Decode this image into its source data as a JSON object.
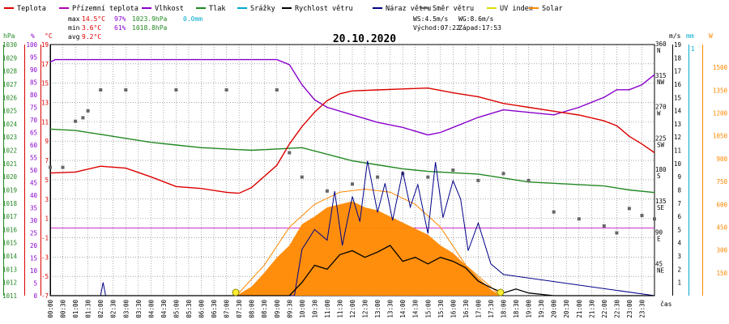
{
  "chart_data": {
    "type": "line",
    "title": "20.10.2020",
    "legend": [
      {
        "label": "Teplota",
        "color": "#dd0000"
      },
      {
        "label": "Přízemní teplota",
        "color": "#aa00aa"
      },
      {
        "label": "Vlhkost",
        "color": "#8800cc"
      },
      {
        "label": "Tlak",
        "color": "#228822"
      },
      {
        "label": "Srážky",
        "color": "#00aacc"
      },
      {
        "label": "Rychlost větru",
        "color": "#000000"
      },
      {
        "label": "Náraz větru",
        "color": "#000088"
      },
      {
        "label": "Směr větru",
        "color": "#666666"
      },
      {
        "label": "UV index",
        "color": "#dddd00"
      },
      {
        "label": "Solar",
        "color": "#ff8800"
      }
    ],
    "stats": {
      "max_label": "max",
      "max_temp": "14.5°C",
      "max_hum": "97%",
      "max_press": "1023.9hPa",
      "max_rain": "0.0mm",
      "min_label": "min",
      "min_temp": "3.6°C",
      "min_hum": "61%",
      "min_press": "1018.8hPa",
      "avg_label": "avg",
      "avg_temp": "9.2°C"
    },
    "wind_stats": {
      "ws": "WS:4.5m/s",
      "wg": "WG:8.6m/s",
      "sunrise": "Východ:07:22",
      "sunset": "Západ:17:53"
    },
    "axes": {
      "hpa": {
        "unit": "hPa",
        "ticks": [
          "1030",
          "1029",
          "1028",
          "1027",
          "1026",
          "1025",
          "1024",
          "1023",
          "1022",
          "1021",
          "1020",
          "1019",
          "1018",
          "1017",
          "1016",
          "1015",
          "1014",
          "1013",
          "1012",
          "1011"
        ],
        "range": [
          1011,
          1030
        ]
      },
      "pct": {
        "unit": "%",
        "ticks": [
          "100",
          "95",
          "90",
          "85",
          "80",
          "75",
          "70",
          "65",
          "60",
          "55",
          "50",
          "45",
          "40",
          "35",
          "30",
          "25",
          "20",
          "15",
          "10",
          "5",
          "0"
        ],
        "range": [
          0,
          100
        ]
      },
      "temp": {
        "unit": "°C",
        "ticks": [
          "19",
          "17",
          "15",
          "13",
          "11",
          "9",
          "7",
          "5",
          "3",
          "1",
          "-1",
          "-3",
          "-5",
          "-7"
        ],
        "range": [
          -7,
          19
        ]
      },
      "dir": {
        "unit": "°",
        "ticks": [
          {
            "v": "360",
            "d": "N"
          },
          {
            "v": "315",
            "d": "NW"
          },
          {
            "v": "270",
            "d": "W"
          },
          {
            "v": "225",
            "d": "SW"
          },
          {
            "v": "180",
            "d": "S"
          },
          {
            "v": "135",
            "d": "SE"
          },
          {
            "v": "90",
            "d": "E"
          },
          {
            "v": "45",
            "d": "NE"
          }
        ],
        "range": [
          0,
          360
        ]
      },
      "ms": {
        "unit": "m/s",
        "ticks": [
          "19",
          "18",
          "17",
          "16",
          "15",
          "14",
          "13",
          "12",
          "11",
          "10",
          "9",
          "8",
          "7",
          "6",
          "5",
          "4",
          "3",
          "2",
          "1"
        ],
        "range": [
          0,
          19
        ]
      },
      "mm": {
        "unit": "mm",
        "ticks": [
          "1"
        ],
        "range": [
          0,
          1
        ]
      },
      "solar": {
        "unit": "W",
        "ticks": [
          "1500",
          "1350",
          "1200",
          "1050",
          "900",
          "750",
          "600",
          "450",
          "300",
          "150"
        ],
        "range": [
          0,
          1650
        ]
      },
      "x": {
        "label": "čas",
        "ticks": [
          "00:00",
          "00:30",
          "01:00",
          "01:30",
          "02:00",
          "02:30",
          "03:00",
          "03:30",
          "04:00",
          "04:30",
          "05:00",
          "05:30",
          "06:00",
          "06:30",
          "07:00",
          "07:30",
          "08:00",
          "08:30",
          "09:00",
          "09:30",
          "10:00",
          "10:30",
          "11:00",
          "11:30",
          "12:00",
          "12:30",
          "13:00",
          "13:30",
          "14:00",
          "14:30",
          "15:00",
          "15:30",
          "16:00",
          "16:30",
          "17:00",
          "17:30",
          "18:00",
          "18:30",
          "19:00",
          "19:30",
          "20:00",
          "20:30",
          "21:00",
          "21:30",
          "22:00",
          "22:30",
          "23:00",
          "23:30"
        ],
        "range_hours": [
          0,
          24
        ]
      }
    },
    "series": [
      {
        "name": "Teplota",
        "unit": "°C",
        "x": [
          0,
          1,
          2,
          3,
          4,
          5,
          6,
          7,
          7.5,
          8,
          9,
          9.5,
          10,
          10.5,
          11,
          11.5,
          12,
          13,
          14,
          15,
          16,
          17,
          18,
          19,
          20,
          21,
          22,
          22.5,
          23,
          23.5,
          24
        ],
        "values": [
          5.7,
          5.8,
          6.4,
          6.2,
          5.3,
          4.3,
          4.1,
          3.7,
          3.6,
          4.2,
          6.5,
          8.7,
          10.5,
          12.0,
          13.2,
          13.9,
          14.2,
          14.3,
          14.4,
          14.5,
          14.0,
          13.6,
          12.9,
          12.5,
          12.1,
          11.7,
          11.1,
          10.6,
          9.5,
          8.7,
          7.8
        ]
      },
      {
        "name": "Vlhkost",
        "unit": "%",
        "x": [
          0,
          0.2,
          1,
          2,
          3,
          4,
          5,
          6,
          7,
          8,
          9,
          9.5,
          10,
          10.5,
          11,
          12,
          13,
          14,
          15,
          15.5,
          16,
          17,
          18,
          19,
          20,
          21,
          22,
          22.5,
          23,
          23.5,
          24
        ],
        "values": [
          93,
          94,
          94,
          94,
          94,
          94,
          94,
          94,
          94,
          94,
          94,
          92,
          84,
          78,
          75,
          72,
          69,
          67,
          64,
          65,
          67,
          71,
          74,
          73,
          72,
          75,
          79,
          82,
          82,
          84,
          88
        ]
      },
      {
        "name": "Tlak",
        "unit": "hPa",
        "x": [
          0,
          1,
          2,
          3,
          4,
          5,
          6,
          7,
          8,
          9,
          10,
          11,
          12,
          13,
          14,
          15,
          16,
          17,
          18,
          19,
          20,
          21,
          22,
          23,
          24
        ],
        "values": [
          1023.6,
          1023.5,
          1023.2,
          1022.9,
          1022.6,
          1022.4,
          1022.2,
          1022.1,
          1022.0,
          1022.1,
          1022.2,
          1021.7,
          1021.2,
          1020.9,
          1020.6,
          1020.4,
          1020.3,
          1020.2,
          1019.9,
          1019.6,
          1019.5,
          1019.4,
          1019.3,
          1019.0,
          1018.8
        ]
      },
      {
        "name": "Rychlost větru",
        "unit": "m/s",
        "x": [
          0,
          9.5,
          10,
          10.5,
          11,
          11.5,
          12,
          12.5,
          13,
          13.5,
          14,
          14.5,
          15,
          15.5,
          16,
          16.5,
          17,
          17.5,
          18,
          18.5,
          19,
          19.5,
          20,
          24
        ],
        "values": [
          0,
          0,
          1.0,
          2.3,
          2.0,
          3.1,
          3.4,
          2.9,
          3.3,
          3.8,
          2.6,
          2.9,
          2.4,
          2.9,
          2.6,
          2.1,
          1.1,
          0.6,
          0.2,
          0.5,
          0.2,
          0.1,
          0,
          0
        ]
      },
      {
        "name": "Náraz větru",
        "unit": "m/s",
        "x": [
          0,
          2,
          2.1,
          2.2,
          9.7,
          10,
          10.5,
          11,
          11.3,
          11.6,
          12,
          12.3,
          12.6,
          13,
          13.3,
          13.6,
          14,
          14.3,
          14.6,
          15,
          15.3,
          15.6,
          16,
          16.3,
          16.6,
          17,
          17.5,
          18,
          24
        ],
        "values": [
          0,
          0,
          1.0,
          0,
          0,
          3.5,
          5.0,
          4.2,
          7.9,
          3.8,
          7.5,
          5.6,
          10.2,
          6.3,
          8.5,
          5.7,
          9.4,
          6.7,
          8.4,
          4.7,
          10.1,
          5.9,
          8.7,
          7.3,
          3.4,
          5.5,
          2.4,
          1.6,
          0
        ]
      },
      {
        "name": "Směr větru",
        "unit": "°",
        "x": [
          0,
          0.5,
          1,
          1.3,
          1.5,
          2,
          3,
          5,
          7,
          9,
          9.5,
          10,
          11,
          12,
          13,
          14,
          15,
          16,
          17,
          18,
          19,
          20,
          21,
          22,
          22.5,
          23,
          23.5,
          24
        ],
        "values": [
          184,
          184,
          250,
          255,
          265,
          295,
          295,
          295,
          295,
          295,
          205,
          170,
          150,
          160,
          170,
          175,
          170,
          180,
          165,
          175,
          165,
          120,
          110,
          100,
          90,
          125,
          115,
          110
        ]
      },
      {
        "name": "Solar",
        "unit": "W/m2",
        "x": [
          7.4,
          8,
          8.5,
          9,
          9.5,
          10,
          10.5,
          11,
          11.5,
          12,
          12.5,
          13,
          13.5,
          14,
          14.5,
          15,
          15.5,
          16,
          16.5,
          17,
          17.5,
          17.9
        ],
        "values": [
          0,
          60,
          150,
          250,
          330,
          470,
          520,
          580,
          600,
          620,
          580,
          560,
          520,
          480,
          440,
          400,
          330,
          280,
          200,
          120,
          40,
          0
        ]
      },
      {
        "name": "Solar theoretical",
        "unit": "W/m2",
        "x": [
          7.4,
          8.5,
          9.5,
          10.5,
          11.5,
          12.5,
          13.5,
          14.5,
          15.5,
          16.5,
          17.9
        ],
        "values": [
          0,
          200,
          450,
          600,
          680,
          700,
          680,
          600,
          450,
          200,
          0
        ]
      }
    ]
  }
}
